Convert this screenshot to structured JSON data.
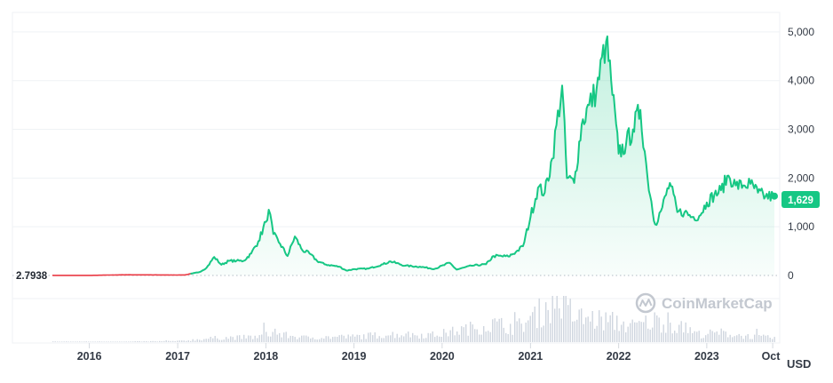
{
  "chart_data": {
    "type": "line",
    "title": "",
    "xlabel": "",
    "ylabel": "",
    "currency": "USD",
    "x_ticks": [
      "2016",
      "2017",
      "2018",
      "2019",
      "2020",
      "2021",
      "2022",
      "2023",
      "Oct"
    ],
    "y_ticks": [
      "0",
      "1,000",
      "2,000",
      "3,000",
      "4,000",
      "5,000"
    ],
    "ylim": [
      0,
      5400
    ],
    "start_price": "2.7938",
    "current_price": "1,629",
    "grid": true,
    "legend": "none",
    "colors": {
      "line_up": "#16c784",
      "line_down": "#ea3943",
      "badge": "#16c784"
    },
    "watermark": "CoinMarketCap",
    "series": [
      {
        "values": [
          {
            "x": "2015-08",
            "y": 2.8
          },
          {
            "x": "2015-10",
            "y": 1
          },
          {
            "x": "2016-01",
            "y": 1
          },
          {
            "x": "2016-04",
            "y": 10
          },
          {
            "x": "2016-06",
            "y": 14
          },
          {
            "x": "2016-09",
            "y": 12
          },
          {
            "x": "2017-01",
            "y": 10
          },
          {
            "x": "2017-02",
            "y": 12
          },
          {
            "x": "2017-03",
            "y": 40
          },
          {
            "x": "2017-04",
            "y": 70
          },
          {
            "x": "2017-05",
            "y": 160
          },
          {
            "x": "2017-06",
            "y": 380
          },
          {
            "x": "2017-07",
            "y": 220
          },
          {
            "x": "2017-08",
            "y": 300
          },
          {
            "x": "2017-09",
            "y": 300
          },
          {
            "x": "2017-10",
            "y": 300
          },
          {
            "x": "2017-11",
            "y": 450
          },
          {
            "x": "2017-12",
            "y": 700
          },
          {
            "x": "2018-01",
            "y": 1100
          },
          {
            "x": "2018-01-13",
            "y": 1350
          },
          {
            "x": "2018-02",
            "y": 850
          },
          {
            "x": "2018-03",
            "y": 650
          },
          {
            "x": "2018-04",
            "y": 400
          },
          {
            "x": "2018-05",
            "y": 800
          },
          {
            "x": "2018-06",
            "y": 520
          },
          {
            "x": "2018-07",
            "y": 450
          },
          {
            "x": "2018-08",
            "y": 300
          },
          {
            "x": "2018-09",
            "y": 230
          },
          {
            "x": "2018-11",
            "y": 180
          },
          {
            "x": "2018-12",
            "y": 100
          },
          {
            "x": "2019-01",
            "y": 130
          },
          {
            "x": "2019-03",
            "y": 140
          },
          {
            "x": "2019-05",
            "y": 230
          },
          {
            "x": "2019-06",
            "y": 290
          },
          {
            "x": "2019-08",
            "y": 200
          },
          {
            "x": "2019-10",
            "y": 180
          },
          {
            "x": "2019-12",
            "y": 135
          },
          {
            "x": "2020-02",
            "y": 260
          },
          {
            "x": "2020-03",
            "y": 120
          },
          {
            "x": "2020-05",
            "y": 200
          },
          {
            "x": "2020-07",
            "y": 230
          },
          {
            "x": "2020-08",
            "y": 400
          },
          {
            "x": "2020-10",
            "y": 390
          },
          {
            "x": "2020-11",
            "y": 480
          },
          {
            "x": "2020-12",
            "y": 600
          },
          {
            "x": "2021-01",
            "y": 1200
          },
          {
            "x": "2021-02",
            "y": 1800
          },
          {
            "x": "2021-03",
            "y": 1700
          },
          {
            "x": "2021-04",
            "y": 2400
          },
          {
            "x": "2021-05-12",
            "y": 3900
          },
          {
            "x": "2021-06",
            "y": 2000
          },
          {
            "x": "2021-07",
            "y": 1900
          },
          {
            "x": "2021-08",
            "y": 3100
          },
          {
            "x": "2021-09",
            "y": 3500
          },
          {
            "x": "2021-10",
            "y": 3800
          },
          {
            "x": "2021-11-10",
            "y": 4800
          },
          {
            "x": "2021-12",
            "y": 4000
          },
          {
            "x": "2022-01",
            "y": 2500
          },
          {
            "x": "2022-02",
            "y": 2700
          },
          {
            "x": "2022-03",
            "y": 3000
          },
          {
            "x": "2022-04",
            "y": 3400
          },
          {
            "x": "2022-05",
            "y": 2000
          },
          {
            "x": "2022-06",
            "y": 1050
          },
          {
            "x": "2022-07",
            "y": 1400
          },
          {
            "x": "2022-08",
            "y": 1900
          },
          {
            "x": "2022-09",
            "y": 1300
          },
          {
            "x": "2022-10",
            "y": 1300
          },
          {
            "x": "2022-11",
            "y": 1200
          },
          {
            "x": "2022-12",
            "y": 1220
          },
          {
            "x": "2023-01",
            "y": 1500
          },
          {
            "x": "2023-02",
            "y": 1650
          },
          {
            "x": "2023-03",
            "y": 1750
          },
          {
            "x": "2023-04",
            "y": 2050
          },
          {
            "x": "2023-05",
            "y": 1850
          },
          {
            "x": "2023-06",
            "y": 1850
          },
          {
            "x": "2023-07",
            "y": 1880
          },
          {
            "x": "2023-08",
            "y": 1700
          },
          {
            "x": "2023-09",
            "y": 1620
          },
          {
            "x": "2023-10-08",
            "y": 1629
          }
        ]
      },
      {
        "name": "",
        "kind": "volume",
        "values": [
          {
            "x": "2015-08",
            "y": 1
          },
          {
            "x": "2016-06",
            "y": 1
          },
          {
            "x": "2017-01",
            "y": 2
          },
          {
            "x": "2017-06",
            "y": 8
          },
          {
            "x": "2017-12",
            "y": 10
          },
          {
            "x": "2018-01",
            "y": 18
          },
          {
            "x": "2018-06",
            "y": 9
          },
          {
            "x": "2018-12",
            "y": 10
          },
          {
            "x": "2019-06",
            "y": 15
          },
          {
            "x": "2019-12",
            "y": 14
          },
          {
            "x": "2020-03",
            "y": 22
          },
          {
            "x": "2020-08",
            "y": 35
          },
          {
            "x": "2020-11",
            "y": 28
          },
          {
            "x": "2021-01",
            "y": 45
          },
          {
            "x": "2021-05",
            "y": 85
          },
          {
            "x": "2021-07",
            "y": 48
          },
          {
            "x": "2021-09",
            "y": 45
          },
          {
            "x": "2021-12",
            "y": 40
          },
          {
            "x": "2022-03",
            "y": 30
          },
          {
            "x": "2022-06",
            "y": 42
          },
          {
            "x": "2022-09",
            "y": 30
          },
          {
            "x": "2022-12",
            "y": 15
          },
          {
            "x": "2023-03",
            "y": 18
          },
          {
            "x": "2023-06",
            "y": 12
          },
          {
            "x": "2023-10-08",
            "y": 8
          }
        ]
      }
    ]
  }
}
